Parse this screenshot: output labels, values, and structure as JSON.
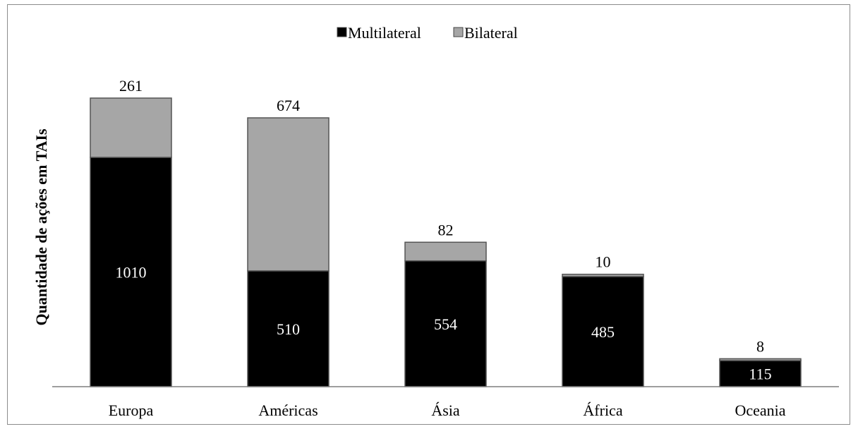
{
  "chart_data": {
    "type": "bar",
    "stacked": true,
    "title": "",
    "xlabel": "",
    "ylabel": "Quantidade de ações em TAIs",
    "categories": [
      "Europa",
      "Américas",
      "Ásia",
      "África",
      "Oceania"
    ],
    "series": [
      {
        "name": "Multilateral",
        "color": "#000000",
        "label_color": "#ffffff",
        "values": [
          1010,
          510,
          554,
          485,
          115
        ]
      },
      {
        "name": "Bilateral",
        "color": "#a6a6a6",
        "label_color": "#000000",
        "values": [
          261,
          674,
          82,
          10,
          8
        ]
      }
    ],
    "ylim": [
      0,
      1271
    ],
    "grid": false,
    "legend_position": "top-center",
    "y_axis_visible": false
  }
}
